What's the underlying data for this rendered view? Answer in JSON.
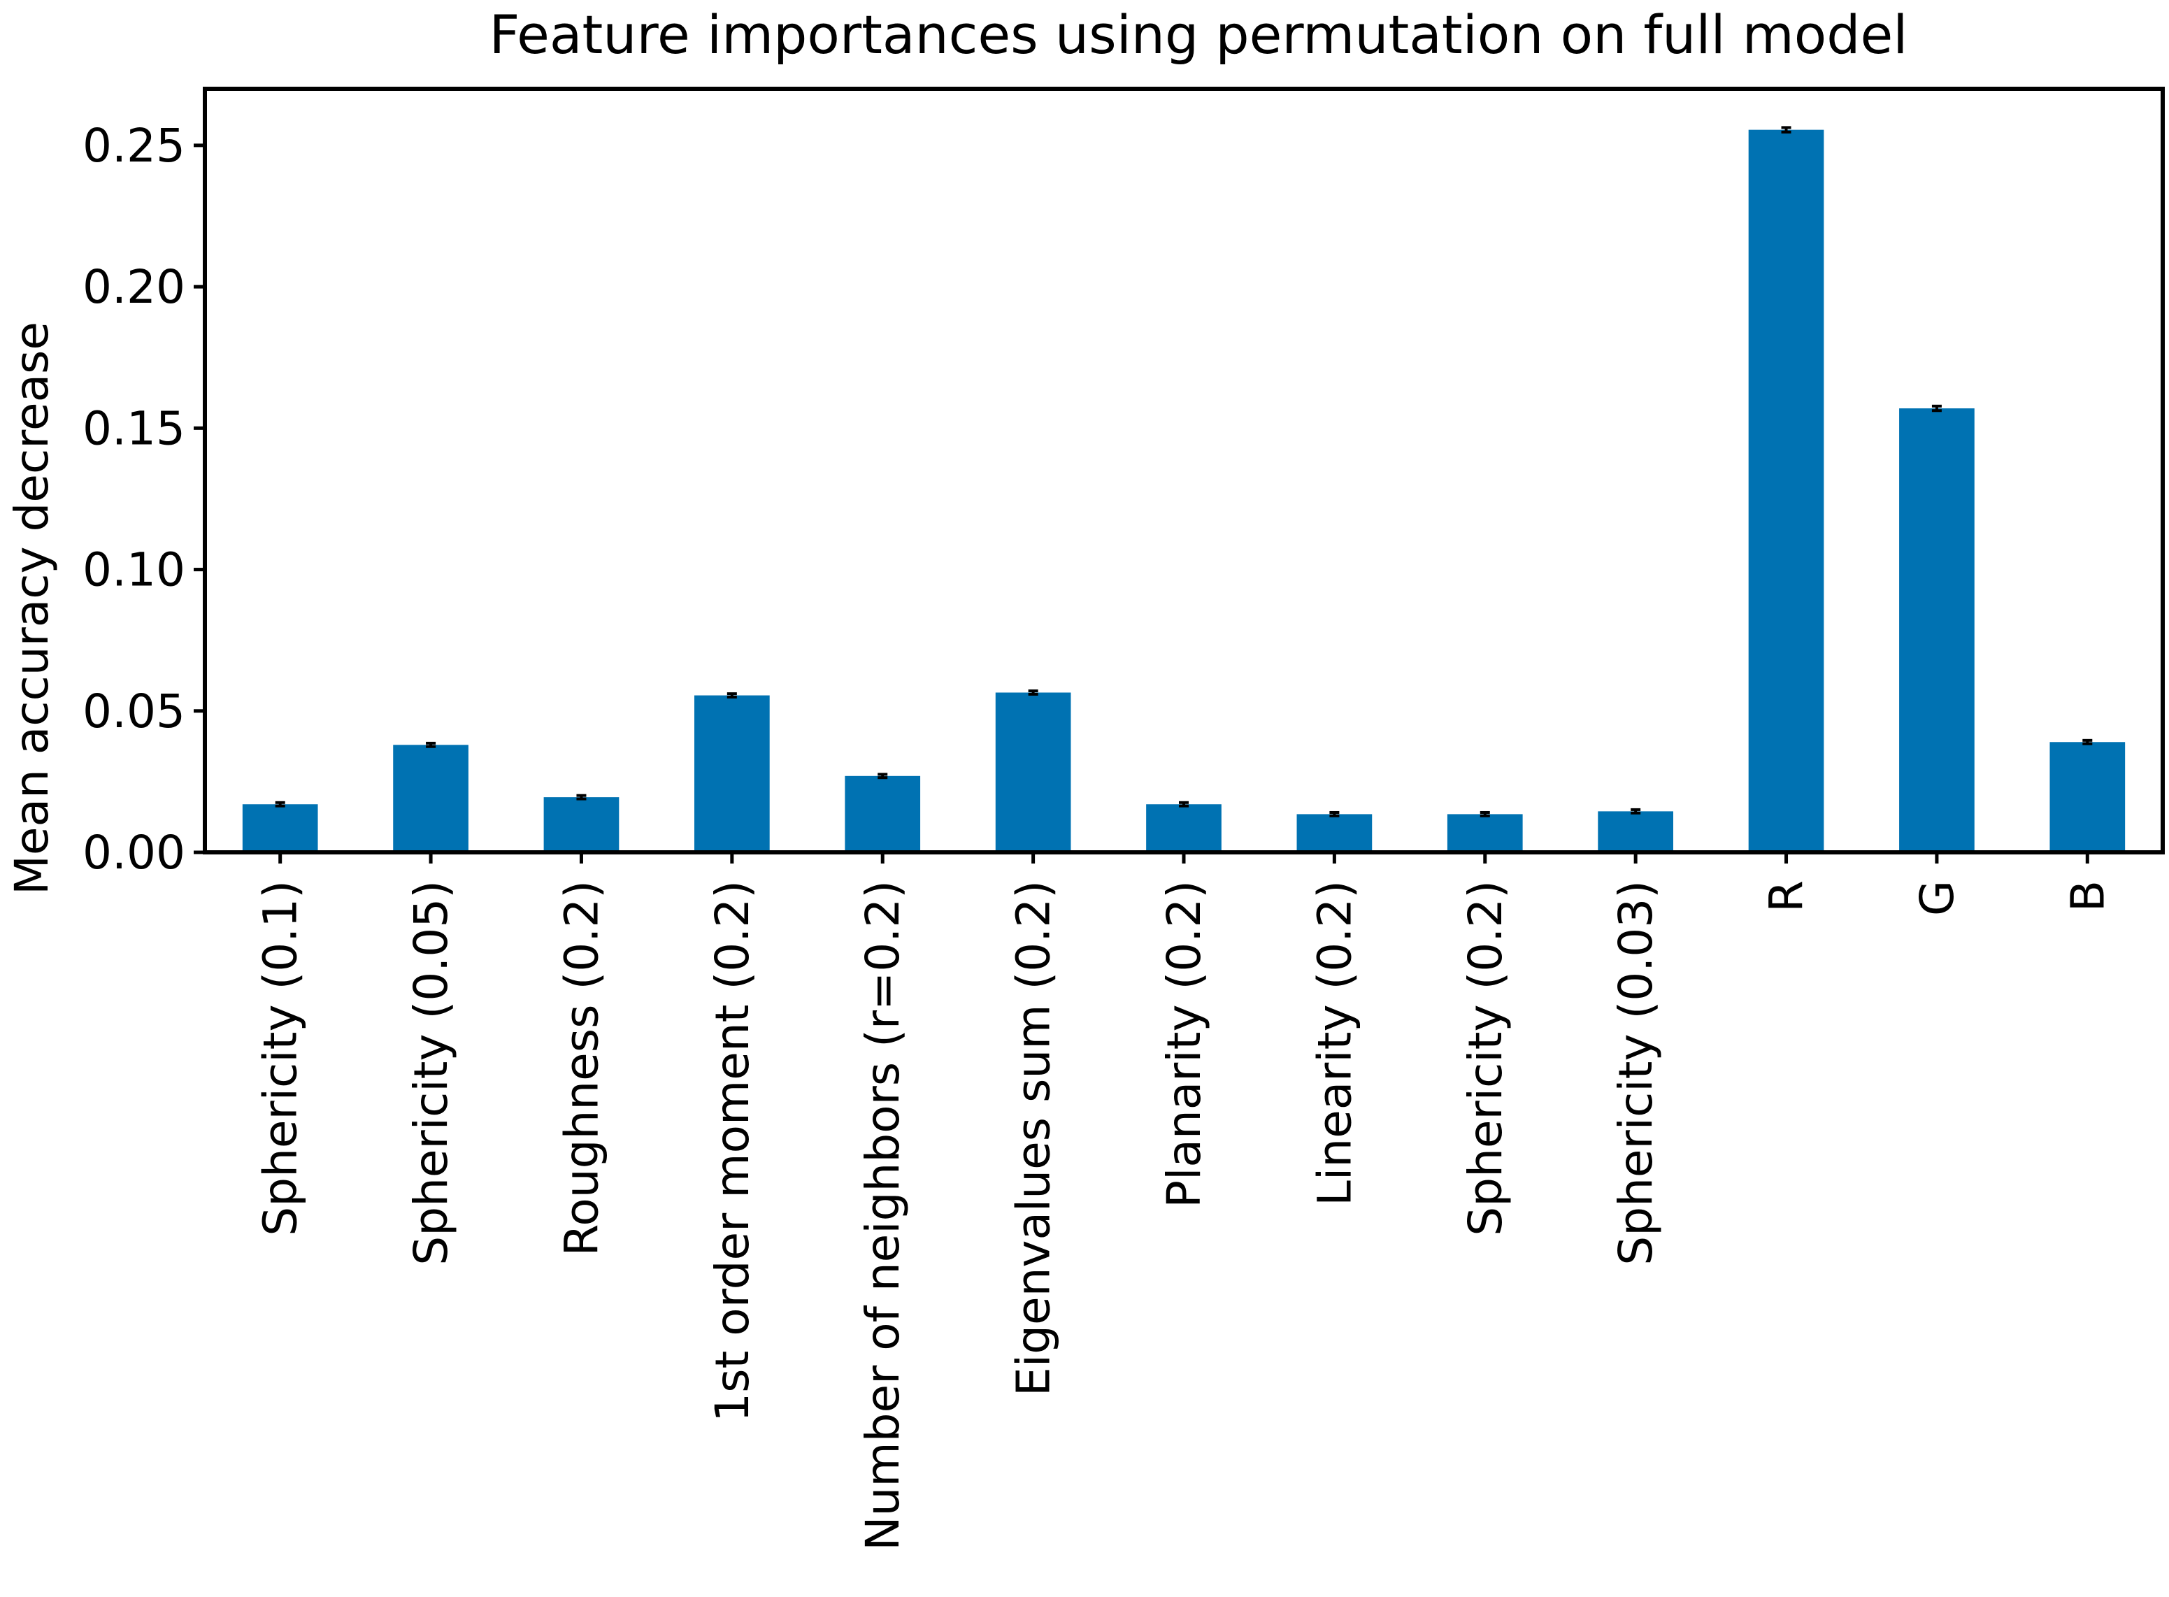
{
  "chart_data": {
    "type": "bar",
    "title": "Feature importances using permutation on full model",
    "xlabel": "",
    "ylabel": "Mean accuracy decrease",
    "ylim": [
      0,
      0.27
    ],
    "yticks": [
      0.0,
      0.05,
      0.1,
      0.15,
      0.2,
      0.25
    ],
    "ytick_labels": [
      "0.00",
      "0.05",
      "0.10",
      "0.15",
      "0.20",
      "0.25"
    ],
    "categories": [
      "Sphericity (0.1)",
      "Sphericity (0.05)",
      "Roughness (0.2)",
      "1st order moment (0.2)",
      "Number of neighbors (r=0.2)",
      "Eigenvalues sum (0.2)",
      "Planarity (0.2)",
      "Linearity (0.2)",
      "Sphericity (0.2)",
      "Sphericity (0.03)",
      "R",
      "G",
      "B"
    ],
    "values": [
      0.017,
      0.038,
      0.0195,
      0.0555,
      0.027,
      0.0565,
      0.017,
      0.0135,
      0.0135,
      0.0145,
      0.2555,
      0.157,
      0.039
    ],
    "errors": [
      0.0006,
      0.0006,
      0.0006,
      0.0006,
      0.0006,
      0.0006,
      0.0006,
      0.0006,
      0.0006,
      0.0006,
      0.0008,
      0.0008,
      0.0006
    ],
    "bar_color": "#0072B2",
    "error_color": "#000000",
    "grid": false,
    "legend": "none"
  }
}
